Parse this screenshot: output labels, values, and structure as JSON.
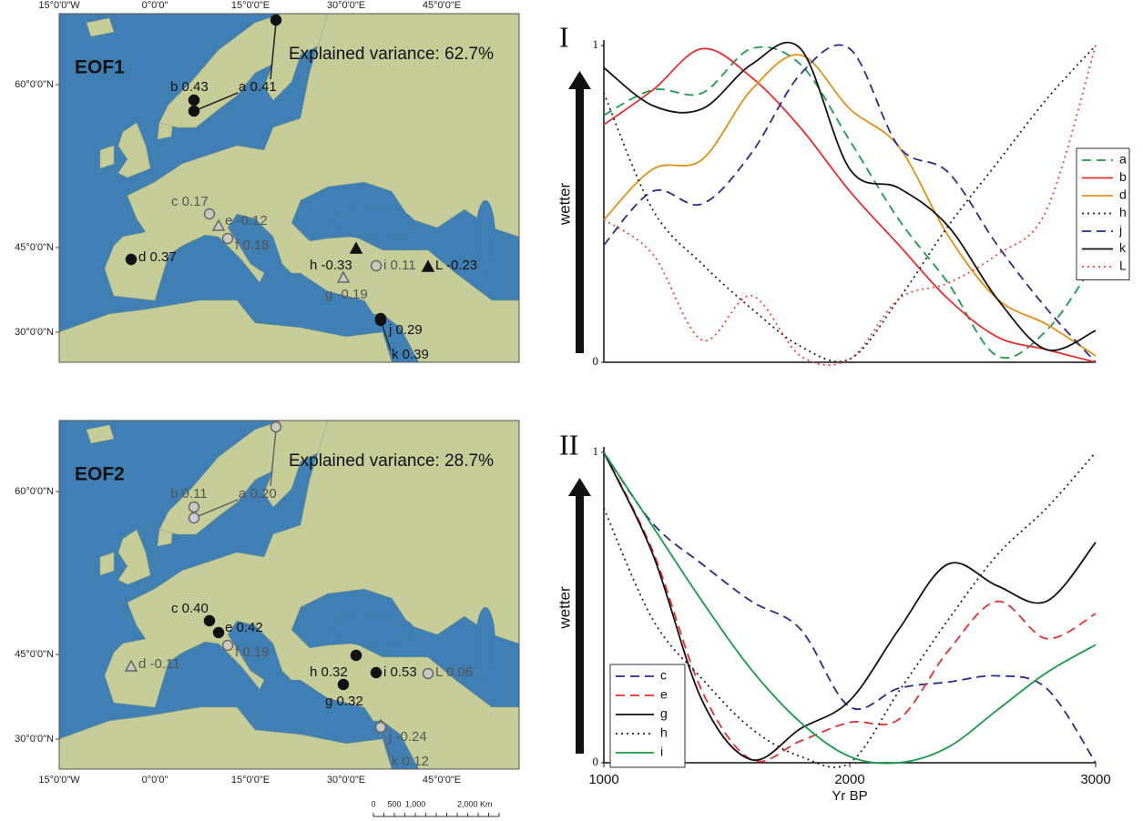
{
  "maps": [
    {
      "panel": "EOF1",
      "variance": "Explained variance: 62.7%",
      "lon_ticks": [
        "15°0'0\"W",
        "0°0'0\"",
        "15°0'0\"E",
        "30°0'0\"E",
        "45°0'0\"E"
      ],
      "lat_ticks": [
        "60°0'0\"N",
        "45°0'0\"N",
        "30°0'0\"N"
      ],
      "sites": [
        {
          "label": "a 0.41",
          "shape": "circle",
          "style": "filled"
        },
        {
          "label": "b 0.43",
          "shape": "circle",
          "style": "filled"
        },
        {
          "label": "c 0.17",
          "shape": "circle",
          "style": "open"
        },
        {
          "label": "d 0.37",
          "shape": "circle",
          "style": "filled"
        },
        {
          "label": "e -0.12",
          "shape": "triangle",
          "style": "open"
        },
        {
          "label": "f 0.18",
          "shape": "circle",
          "style": "open"
        },
        {
          "label": "g -0.19",
          "shape": "triangle",
          "style": "open"
        },
        {
          "label": "h -0.33",
          "shape": "triangle",
          "style": "filled"
        },
        {
          "label": "i 0.11",
          "shape": "circle",
          "style": "open"
        },
        {
          "label": "j 0.29",
          "shape": "circle",
          "style": "filled"
        },
        {
          "label": "k 0.39",
          "shape": "circle",
          "style": "filled"
        },
        {
          "label": "L -0.23",
          "shape": "triangle",
          "style": "filled"
        }
      ]
    },
    {
      "panel": "EOF2",
      "variance": "Explained variance: 28.7%",
      "lon_ticks": [
        "15°0'0\"W",
        "0°0'0\"",
        "15°0'0\"E",
        "30°0'0\"E",
        "45°0'0\"E"
      ],
      "lat_ticks": [
        "60°0'0\"N",
        "45°0'0\"N",
        "30°0'0\"N"
      ],
      "sites": [
        {
          "label": "a 0.20",
          "shape": "circle",
          "style": "open"
        },
        {
          "label": "b 0.11",
          "shape": "circle",
          "style": "open"
        },
        {
          "label": "c 0.40",
          "shape": "circle",
          "style": "filled"
        },
        {
          "label": "d -0.11",
          "shape": "triangle",
          "style": "open"
        },
        {
          "label": "e 0.42",
          "shape": "circle",
          "style": "filled"
        },
        {
          "label": "f 0.19",
          "shape": "circle",
          "style": "open"
        },
        {
          "label": "g 0.32",
          "shape": "circle",
          "style": "filled"
        },
        {
          "label": "h 0.32",
          "shape": "circle",
          "style": "filled"
        },
        {
          "label": "i 0.53",
          "shape": "circle",
          "style": "filled"
        },
        {
          "label": "j -0.24",
          "shape": "triangle",
          "style": "open"
        },
        {
          "label": "k 0.12",
          "shape": "circle",
          "style": "open"
        },
        {
          "label": "L 0.06",
          "shape": "circle",
          "style": "open"
        }
      ]
    }
  ],
  "scale_bar": {
    "labels": [
      "0",
      "500",
      "1,000",
      "2,000 Km"
    ]
  },
  "chart_data": [
    {
      "type": "line",
      "title": "I",
      "y_label": "wetter",
      "x": [
        1000,
        1200,
        1400,
        1600,
        1800,
        2000,
        2200,
        2400,
        2600,
        2800,
        3000
      ],
      "xlim": [
        1000,
        3000
      ],
      "ylim": [
        0,
        1
      ],
      "yticks": [
        0,
        1
      ],
      "legend": "right",
      "series": [
        {
          "name": "a",
          "color": "#1a9a4a",
          "dash": "dashed",
          "values": [
            0.78,
            0.86,
            0.85,
            0.99,
            0.94,
            0.7,
            0.45,
            0.25,
            0.02,
            0.1,
            0.32
          ]
        },
        {
          "name": "b",
          "color": "#e03030",
          "dash": "solid",
          "values": [
            0.75,
            0.86,
            0.99,
            0.9,
            0.74,
            0.54,
            0.37,
            0.2,
            0.08,
            0.04,
            0.0
          ]
        },
        {
          "name": "d",
          "color": "#e0901a",
          "dash": "solid",
          "values": [
            0.45,
            0.61,
            0.64,
            0.86,
            0.97,
            0.8,
            0.68,
            0.4,
            0.2,
            0.12,
            0.02
          ]
        },
        {
          "name": "h",
          "color": "#222222",
          "dash": "dotted",
          "values": [
            0.85,
            0.48,
            0.31,
            0.17,
            0.05,
            0.01,
            0.2,
            0.43,
            0.63,
            0.83,
            1.0
          ]
        },
        {
          "name": "j",
          "color": "#2a2a8a",
          "dash": "dashed",
          "values": [
            0.37,
            0.54,
            0.5,
            0.66,
            0.91,
            0.99,
            0.68,
            0.6,
            0.37,
            0.17,
            0.0
          ]
        },
        {
          "name": "k",
          "color": "#111111",
          "dash": "solid",
          "values": [
            0.93,
            0.81,
            0.8,
            0.94,
            0.99,
            0.61,
            0.55,
            0.43,
            0.2,
            0.04,
            0.1
          ]
        },
        {
          "name": "L",
          "color": "#f04040",
          "dash": "dotted",
          "values": [
            0.45,
            0.34,
            0.07,
            0.21,
            0.02,
            0.01,
            0.2,
            0.25,
            0.34,
            0.48,
            1.0
          ]
        }
      ]
    },
    {
      "type": "line",
      "title": "II",
      "y_label": "wetter",
      "x_label": "Yr BP",
      "x": [
        1000,
        1200,
        1400,
        1600,
        1800,
        2000,
        2200,
        2400,
        2600,
        2800,
        3000
      ],
      "xlim": [
        1000,
        3000
      ],
      "xticks": [
        1000,
        2000,
        3000
      ],
      "ylim": [
        0,
        1
      ],
      "yticks": [
        0,
        1
      ],
      "legend": "lower left",
      "series": [
        {
          "name": "c",
          "color": "#2a2a8a",
          "dash": "dashed",
          "values": [
            1.0,
            0.77,
            0.64,
            0.52,
            0.43,
            0.18,
            0.24,
            0.26,
            0.28,
            0.24,
            0.0
          ]
        },
        {
          "name": "e",
          "color": "#e03030",
          "dash": "dashed",
          "values": [
            1.0,
            0.68,
            0.23,
            0.01,
            0.07,
            0.13,
            0.14,
            0.36,
            0.52,
            0.4,
            0.48
          ]
        },
        {
          "name": "g",
          "color": "#111111",
          "dash": "solid",
          "values": [
            1.0,
            0.67,
            0.2,
            0.01,
            0.11,
            0.2,
            0.43,
            0.64,
            0.57,
            0.52,
            0.71
          ]
        },
        {
          "name": "h",
          "color": "#222222",
          "dash": "dotted",
          "values": [
            0.82,
            0.46,
            0.27,
            0.11,
            0.02,
            0.0,
            0.23,
            0.46,
            0.67,
            0.82,
            1.0
          ]
        },
        {
          "name": "i",
          "color": "#1a9a4a",
          "dash": "solid",
          "values": [
            1.0,
            0.76,
            0.52,
            0.3,
            0.13,
            0.02,
            0.0,
            0.05,
            0.17,
            0.29,
            0.38
          ]
        }
      ]
    }
  ]
}
